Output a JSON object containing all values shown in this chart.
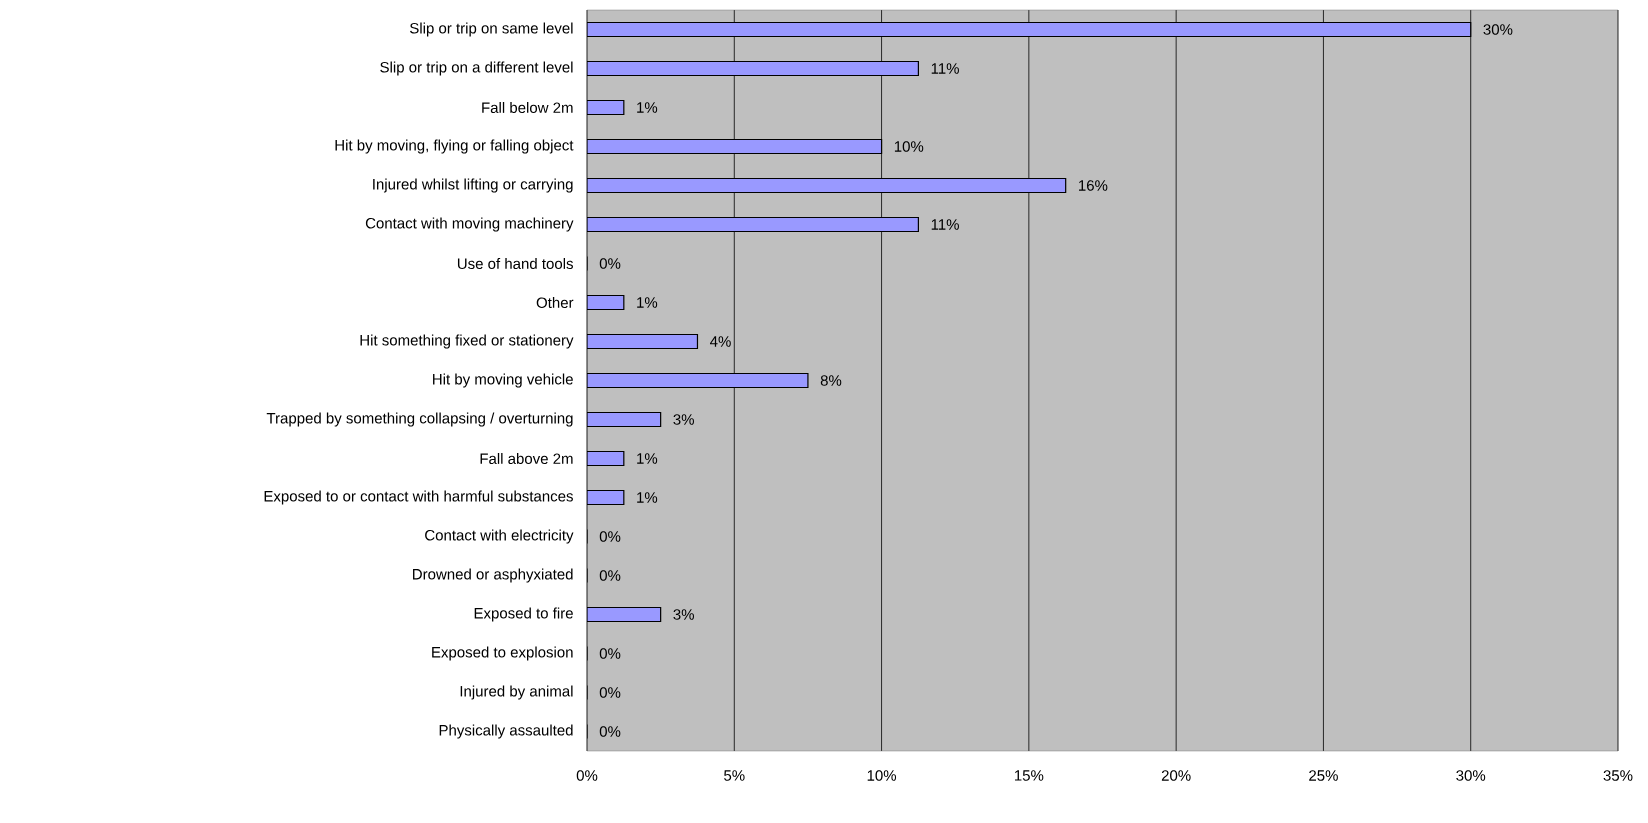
{
  "chart_data": {
    "type": "bar",
    "orientation": "horizontal",
    "categories": [
      "Slip or trip on same level",
      "Slip or trip on a different level",
      "Fall below 2m",
      "Hit by moving, flying or falling object",
      "Injured whilst lifting or carrying",
      "Contact with moving machinery",
      "Use of hand tools",
      "Other",
      "Hit something fixed or stationery",
      "Hit by moving vehicle",
      "Trapped by something collapsing / overturning",
      "Fall above 2m",
      "Exposed to or contact with harmful substances",
      "Contact with electricity",
      "Drowned or asphyxiated",
      "Exposed to fire",
      "Exposed to explosion",
      "Injured by animal",
      "Physically assaulted"
    ],
    "values": [
      30,
      11.25,
      1.25,
      10,
      16.25,
      11.25,
      0,
      1.25,
      3.75,
      7.5,
      2.5,
      1.25,
      1.25,
      0,
      0,
      2.5,
      0,
      0,
      0
    ],
    "value_labels": [
      "30%",
      "11%",
      "1%",
      "10%",
      "16%",
      "11%",
      "0%",
      "1%",
      "4%",
      "8%",
      "3%",
      "1%",
      "1%",
      "0%",
      "0%",
      "3%",
      "0%",
      "0%",
      "0%"
    ],
    "color": "#9999ff",
    "xlim": [
      0,
      35
    ],
    "xticks": [
      {
        "value": 0,
        "label": "0%"
      },
      {
        "value": 5,
        "label": "5%"
      },
      {
        "value": 10,
        "label": "10%"
      },
      {
        "value": 15,
        "label": "15%"
      },
      {
        "value": 20,
        "label": "20%"
      },
      {
        "value": 25,
        "label": "25%"
      },
      {
        "value": 30,
        "label": "30%"
      },
      {
        "value": 35,
        "label": "35%"
      }
    ],
    "grid": "x"
  }
}
